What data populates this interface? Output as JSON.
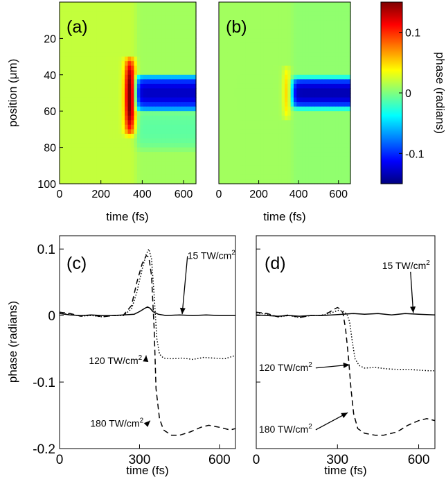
{
  "colors": {
    "axis": "#000000",
    "background": "#ffffff",
    "colormap": "jet"
  },
  "chart_data": [
    {
      "panel_label": "(a)",
      "type": "heatmap",
      "xlabel": "time (fs)",
      "ylabel": "position (μm)",
      "xlim": [
        0,
        660
      ],
      "ylim": [
        0,
        100
      ],
      "y_reversed": true,
      "xticks": [
        0,
        200,
        400,
        600
      ],
      "yticks": [
        20,
        40,
        60,
        80,
        100
      ],
      "color_scale": [
        -0.15,
        0.15
      ],
      "background_value": 0.02,
      "features": [
        {
          "kind": "transient_peak",
          "time": 340,
          "time_width": 25,
          "pos_center": 52,
          "pos_half_width": 22,
          "value": 0.14
        },
        {
          "kind": "step_negative",
          "time_start": 370,
          "pos_center": 50,
          "pos_half_width": 10,
          "value": -0.14
        },
        {
          "kind": "step_weak",
          "time_start": 370,
          "pos_center": 70,
          "pos_half_width": 12,
          "value": -0.02
        }
      ]
    },
    {
      "panel_label": "(b)",
      "type": "heatmap",
      "xlabel": "time (fs)",
      "xlim": [
        0,
        660
      ],
      "ylim": [
        0,
        100
      ],
      "y_reversed": true,
      "xticks": [
        0,
        200,
        400,
        600
      ],
      "color_scale": [
        -0.15,
        0.15
      ],
      "background_value": 0.01,
      "features": [
        {
          "kind": "transient_peak",
          "time": 340,
          "time_width": 20,
          "pos_center": 50,
          "pos_half_width": 15,
          "value": 0.04
        },
        {
          "kind": "step_negative",
          "time_start": 370,
          "pos_center": 50,
          "pos_half_width": 9,
          "value": -0.14
        }
      ]
    },
    {
      "type": "colorbar",
      "label": "phase (radians)",
      "range": [
        -0.15,
        0.15
      ],
      "ticks": [
        0.1,
        0,
        -0.1
      ],
      "tick_labels": [
        "0.1",
        "0",
        "-0.1"
      ]
    },
    {
      "panel_label": "(c)",
      "type": "line",
      "xlabel": "time (fs)",
      "ylabel": "phase (radians)",
      "xlim": [
        0,
        660
      ],
      "ylim": [
        -0.2,
        0.12
      ],
      "xticks": [
        0,
        300,
        600
      ],
      "yticks": [
        0.1,
        0,
        -0.1,
        -0.2
      ],
      "ytick_labels": [
        "0.1",
        "0",
        "-0.1",
        "-0.2"
      ],
      "series": [
        {
          "name": "15 TW/cm²",
          "style": "solid",
          "x": [
            0,
            40,
            80,
            120,
            160,
            200,
            240,
            280,
            300,
            320,
            330,
            340,
            350,
            370,
            400,
            450,
            500,
            550,
            600,
            660
          ],
          "y": [
            0.003,
            0.001,
            0.0,
            0.001,
            0.0,
            0.0,
            0.001,
            0.002,
            0.006,
            0.011,
            0.013,
            0.011,
            0.006,
            0.002,
            0.0,
            0.001,
            0.0,
            0.001,
            0.0,
            0.0
          ]
        },
        {
          "name": "120 TW/cm²",
          "style": "dotted",
          "x": [
            0,
            40,
            80,
            120,
            160,
            200,
            240,
            270,
            290,
            310,
            325,
            335,
            345,
            355,
            365,
            375,
            390,
            420,
            460,
            500,
            540,
            580,
            620,
            660
          ],
          "y": [
            0.003,
            0.002,
            -0.001,
            0.0,
            -0.002,
            0.0,
            0.0,
            0.01,
            0.035,
            0.07,
            0.092,
            0.1,
            0.085,
            0.03,
            -0.035,
            -0.058,
            -0.064,
            -0.065,
            -0.064,
            -0.066,
            -0.063,
            -0.064,
            -0.065,
            -0.06
          ]
        },
        {
          "name": "180 TW/cm²",
          "style": "dashed",
          "x": [
            0,
            40,
            80,
            120,
            160,
            200,
            240,
            270,
            290,
            310,
            325,
            335,
            345,
            355,
            362,
            375,
            390,
            420,
            450,
            490,
            530,
            560,
            600,
            640,
            660
          ],
          "y": [
            0.005,
            0.003,
            -0.001,
            0.001,
            -0.002,
            0.0,
            0.001,
            0.015,
            0.05,
            0.078,
            0.09,
            0.088,
            0.06,
            -0.02,
            -0.11,
            -0.155,
            -0.172,
            -0.18,
            -0.18,
            -0.175,
            -0.168,
            -0.165,
            -0.168,
            -0.172,
            -0.17
          ]
        }
      ],
      "annotations": [
        {
          "text": "15 TW/cm",
          "sup": "2",
          "x": 480,
          "y": 0.085,
          "arrow_to_x": 460,
          "arrow_to_y": 0.002
        },
        {
          "text": "120 TW/cm",
          "sup": "2",
          "x": 110,
          "y": -0.073,
          "arrow_to_x": 325,
          "arrow_to_y": -0.06
        },
        {
          "text": "180 TW/cm",
          "sup": "2",
          "x": 115,
          "y": -0.167,
          "arrow_to_x": 340,
          "arrow_to_y": -0.158
        }
      ]
    },
    {
      "panel_label": "(d)",
      "type": "line",
      "xlabel": "time (fs)",
      "xlim": [
        0,
        660
      ],
      "ylim": [
        -0.2,
        0.12
      ],
      "xticks": [
        0,
        300,
        600
      ],
      "yticks": [
        0.1,
        0,
        -0.1,
        -0.2
      ],
      "series": [
        {
          "name": "15 TW/cm²",
          "style": "solid",
          "x": [
            0,
            40,
            80,
            120,
            160,
            200,
            240,
            280,
            320,
            360,
            400,
            450,
            500,
            550,
            600,
            660
          ],
          "y": [
            0.001,
            0.0,
            -0.001,
            0.0,
            -0.001,
            0.0,
            0.0,
            0.001,
            0.002,
            0.003,
            0.002,
            0.003,
            0.001,
            0.003,
            0.002,
            0.001
          ]
        },
        {
          "name": "120 TW/cm²",
          "style": "dotted",
          "x": [
            0,
            40,
            80,
            120,
            160,
            200,
            240,
            270,
            290,
            305,
            320,
            335,
            345,
            355,
            365,
            380,
            400,
            440,
            480,
            520,
            560,
            600,
            640,
            660
          ],
          "y": [
            0.004,
            0.002,
            -0.002,
            0.0,
            -0.003,
            0.0,
            0.0,
            0.003,
            0.006,
            0.008,
            0.007,
            0.002,
            -0.01,
            -0.04,
            -0.065,
            -0.075,
            -0.079,
            -0.078,
            -0.08,
            -0.081,
            -0.081,
            -0.082,
            -0.083,
            -0.083
          ]
        },
        {
          "name": "180 TW/cm²",
          "style": "dashed",
          "x": [
            0,
            40,
            80,
            120,
            160,
            200,
            240,
            270,
            290,
            300,
            310,
            320,
            330,
            340,
            350,
            360,
            375,
            400,
            440,
            470,
            520,
            560,
            600,
            630,
            660
          ],
          "y": [
            0.005,
            0.003,
            -0.002,
            0.001,
            -0.003,
            0.0,
            0.0,
            0.005,
            0.01,
            0.012,
            0.01,
            0.004,
            -0.02,
            -0.06,
            -0.11,
            -0.148,
            -0.17,
            -0.177,
            -0.18,
            -0.18,
            -0.175,
            -0.165,
            -0.158,
            -0.155,
            -0.158
          ]
        }
      ],
      "annotations": [
        {
          "text": "15 TW/cm",
          "sup": "2",
          "x": 465,
          "y": 0.07,
          "arrow_to_x": 580,
          "arrow_to_y": 0.004
        },
        {
          "text": "120 TW/cm",
          "sup": "2",
          "x": 10,
          "y": -0.083,
          "arrow_to_x": 345,
          "arrow_to_y": -0.074
        },
        {
          "text": "180 TW/cm",
          "sup": "2",
          "x": 10,
          "y": -0.176,
          "arrow_to_x": 338,
          "arrow_to_y": -0.146
        }
      ]
    }
  ]
}
